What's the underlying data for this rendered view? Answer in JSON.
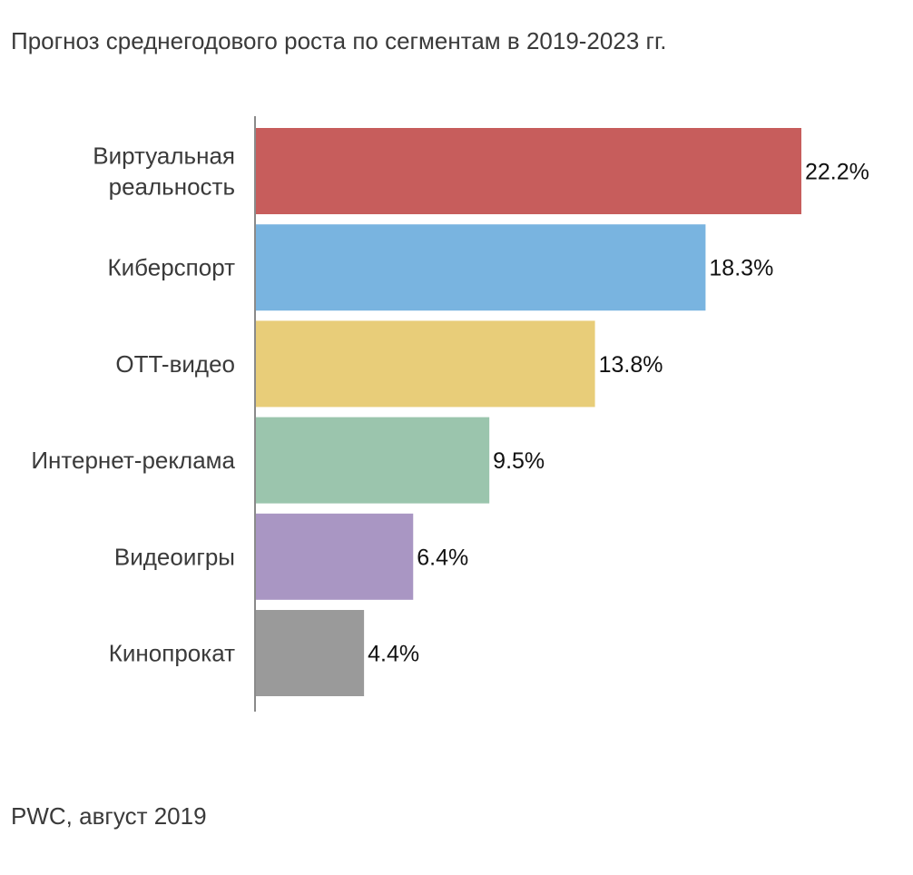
{
  "chart_data": {
    "type": "bar",
    "orientation": "horizontal",
    "title": "Прогноз среднегодового роста по сегментам в 2019-2023 гг.",
    "categories": [
      [
        "Виртуальная",
        "реальность"
      ],
      [
        "Киберспорт"
      ],
      [
        "OTT-видео"
      ],
      [
        "Интернет-реклама"
      ],
      [
        "Видеоигры"
      ],
      [
        "Кинопрокат"
      ]
    ],
    "values": [
      22.2,
      18.3,
      13.8,
      9.5,
      6.4,
      4.4
    ],
    "value_labels": [
      "22.2%",
      "18.3%",
      "13.8%",
      "9.5%",
      "6.4%",
      "4.4%"
    ],
    "colors": [
      "#c75d5c",
      "#79b4e0",
      "#e8cd79",
      "#9bc5ad",
      "#a996c3",
      "#9a9a9a"
    ],
    "xlim": [
      0,
      22.2
    ],
    "grid": false,
    "xlabel": "",
    "ylabel": ""
  },
  "source": "PWC, август 2019"
}
